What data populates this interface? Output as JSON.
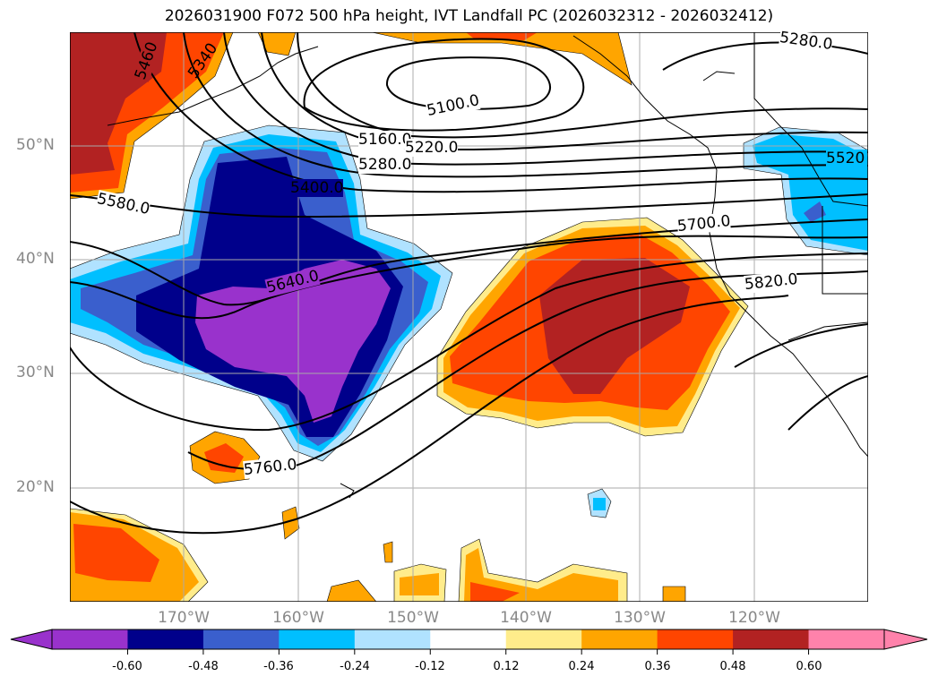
{
  "title": "2026031900 F072 500 hPa height, IVT Landfall PC (2026032312 - 2026032412)",
  "lat_labels": [
    "50°N",
    "40°N",
    "30°N",
    "20°N"
  ],
  "lon_labels": [
    "170°W",
    "160°W",
    "150°W",
    "140°W",
    "130°W",
    "120°W"
  ],
  "contour_labels": [
    "5460",
    "5340",
    "5100.0",
    "5160.0",
    "5220.0",
    "5280.0",
    "5400.0",
    "5580.0",
    "5640.0",
    "5700.0",
    "5820.0",
    "5760.0",
    "5280.0",
    "5520"
  ],
  "colorbar": {
    "ticks": [
      "-0.60",
      "-0.48",
      "-0.36",
      "-0.24",
      "-0.12",
      "0.12",
      "0.24",
      "0.36",
      "0.48",
      "0.60"
    ],
    "colors": [
      "#9932cc",
      "#00008b",
      "#3a5fcd",
      "#00bfff",
      "#b0e2ff",
      "#ffffff",
      "#ffec8b",
      "#ffa500",
      "#ff4500",
      "#b22222",
      "#ff82ab"
    ]
  }
}
